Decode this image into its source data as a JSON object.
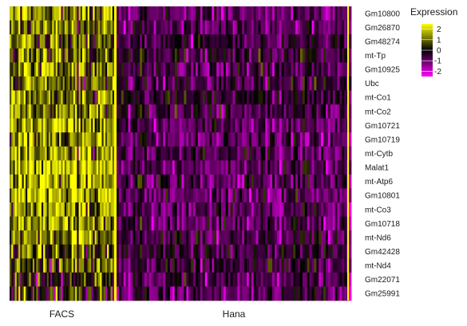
{
  "chart_data": {
    "type": "heatmap",
    "title": "",
    "genes": [
      "Gm10800",
      "Gm26870",
      "Gm48274",
      "mt-Tp",
      "Gm10925",
      "Ubc",
      "mt-Co1",
      "mt-Co2",
      "Gm10721",
      "Gm10719",
      "mt-Cytb",
      "Malat1",
      "mt-Atp6",
      "Gm10801",
      "mt-Co3",
      "Gm10718",
      "mt-Nd6",
      "Gm42428",
      "mt-Nd4",
      "Gm22071",
      "Gm25991"
    ],
    "groups": [
      {
        "name": "FACS",
        "mean_expression": [
          1.2,
          1.0,
          0.9,
          0.8,
          1.1,
          0.7,
          0.9,
          1.3,
          1.6,
          1.4,
          1.5,
          1.8,
          1.5,
          1.7,
          1.3,
          1.4,
          1.2,
          1.0,
          0.9,
          0.2,
          0.1
        ]
      },
      {
        "name": "Hana",
        "mean_expression": [
          -0.9,
          -0.9,
          -0.6,
          -0.5,
          -0.7,
          -0.5,
          -0.4,
          -0.6,
          -0.9,
          -0.9,
          -0.7,
          -0.9,
          -0.7,
          -0.9,
          -0.8,
          -0.9,
          -0.7,
          -0.6,
          -0.6,
          -0.7,
          -0.8
        ]
      }
    ],
    "legend": {
      "title": "Expression",
      "ticks": [
        2,
        1,
        0,
        -1,
        -2
      ],
      "range": [
        -2.5,
        2.5
      ],
      "colors": {
        "low": "#ff00ff",
        "mid": "#000000",
        "high": "#ffff00"
      }
    }
  }
}
